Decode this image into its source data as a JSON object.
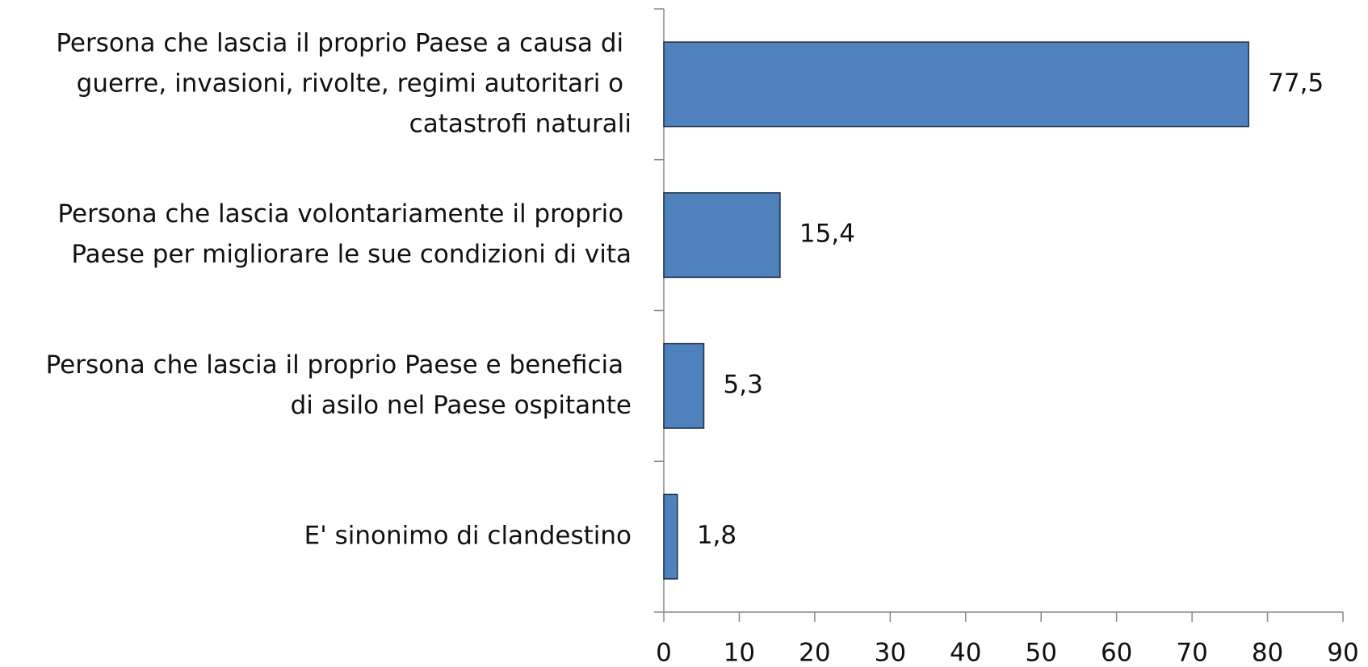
{
  "chart_data": {
    "type": "bar",
    "orientation": "horizontal",
    "categories": [
      "Persona che lascia il proprio Paese a causa di\nguerre, invasioni, rivolte, regimi autoritari o\ncatastrofi naturali",
      "Persona che lascia volontariamente il proprio\nPaese per migliorare le sue condizioni di vita",
      "Persona che lascia il proprio Paese e beneficia\ndi asilo nel Paese ospitante",
      "E' sinonimo di clandestino"
    ],
    "values": [
      77.5,
      15.4,
      5.3,
      1.8
    ],
    "value_labels": [
      "77,5",
      "15,4",
      "5,3",
      "1,8"
    ],
    "color": "#4f81bd",
    "xlim": [
      0,
      90
    ],
    "xticks": [
      0,
      10,
      20,
      30,
      40,
      50,
      60,
      70,
      80,
      90
    ]
  }
}
